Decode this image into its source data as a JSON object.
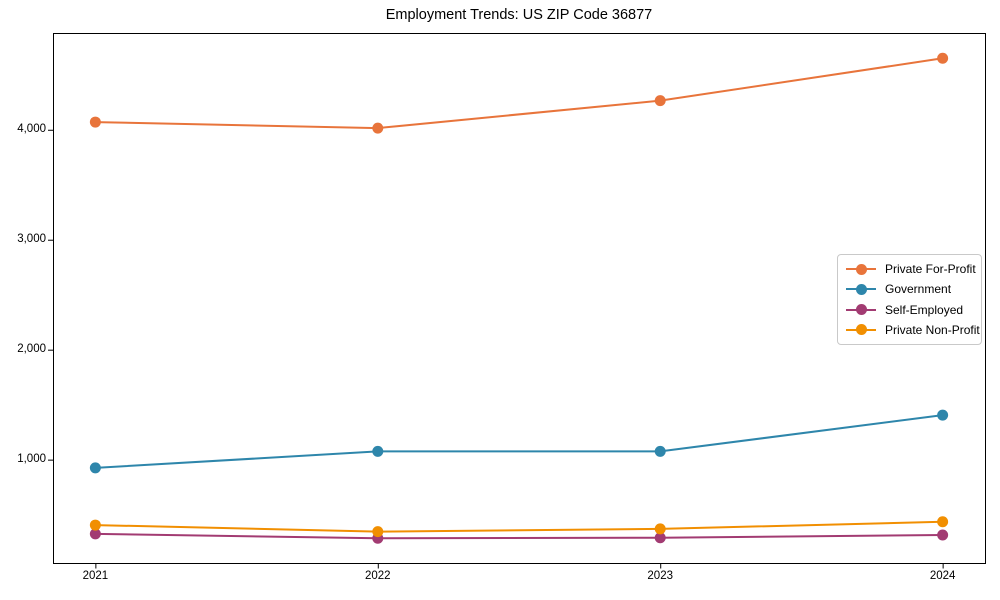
{
  "chart_data": {
    "type": "line",
    "title": "Employment Trends: US ZIP Code 36877",
    "categories": [
      2021,
      2022,
      2023,
      2024
    ],
    "x_tick_labels": [
      "2021",
      "2022",
      "2023",
      "2024"
    ],
    "y_ticks": [
      1000,
      2000,
      3000,
      4000
    ],
    "y_tick_labels": [
      "1,000",
      "2,000",
      "3,000",
      "4,000"
    ],
    "xlim": [
      2020.85,
      2024.15
    ],
    "ylim": [
      60,
      4880
    ],
    "grid": false,
    "legend_position": "center-right",
    "marker": "circle",
    "line_width": 2,
    "marker_radius": 5.5,
    "axis_color": "#000000",
    "background_color": "#ffffff",
    "series": [
      {
        "name": "Private For-Profit",
        "color": "#E8743B",
        "values": [
          4070,
          4015,
          4265,
          4650
        ]
      },
      {
        "name": "Government",
        "color": "#2E86AB",
        "values": [
          925,
          1075,
          1075,
          1405
        ]
      },
      {
        "name": "Self-Employed",
        "color": "#A23B72",
        "values": [
          325,
          285,
          290,
          315
        ]
      },
      {
        "name": "Private Non-Profit",
        "color": "#F18F01",
        "values": [
          405,
          345,
          370,
          435
        ]
      }
    ]
  }
}
